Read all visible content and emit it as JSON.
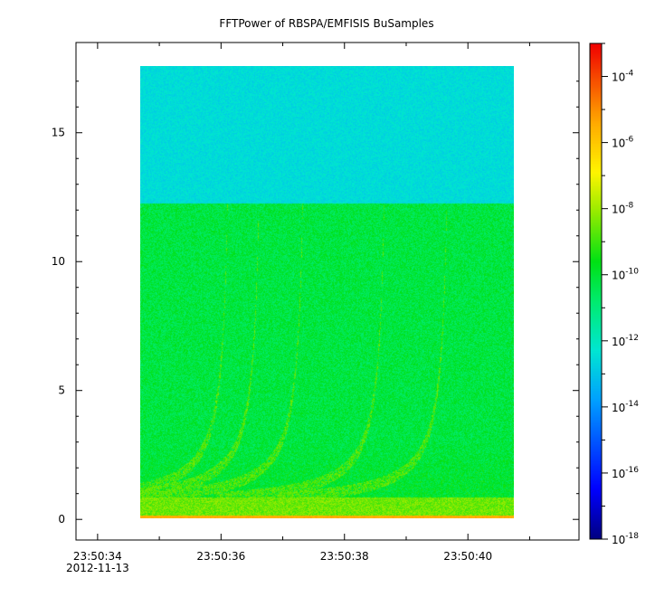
{
  "chart_data": {
    "type": "heatmap",
    "title": "FFTPower of RBSPA/EMFISIS  BuSamples",
    "xlabel": "",
    "ylabel": "",
    "x_range": [
      "2012-11-13 23:50:33.65",
      "2012-11-13 23:50:41.80"
    ],
    "ylim": [
      -0.8,
      18.5
    ],
    "x_ticks": [
      {
        "value": "23:50:34",
        "label": "23:50:34",
        "sublabel": "2012-11-13"
      },
      {
        "value": "23:50:36",
        "label": "23:50:36",
        "sublabel": ""
      },
      {
        "value": "23:50:38",
        "label": "23:50:38",
        "sublabel": ""
      },
      {
        "value": "23:50:40",
        "label": "23:50:40",
        "sublabel": ""
      }
    ],
    "x_minor_ticks": [
      "23:50:35",
      "23:50:37",
      "23:50:39",
      "23:50:41"
    ],
    "y_ticks": [
      0,
      5,
      10,
      15
    ],
    "y_tick_labels": [
      "0",
      "5",
      "10",
      "15"
    ],
    "data_extent": {
      "time_start": "23:50:35.00",
      "time_end": "23:50:40.95",
      "freq_min": 0,
      "freq_max": 17.5
    },
    "color_scale": {
      "type": "log10",
      "min": 1e-18,
      "max": 0.001,
      "colormap": "rainbow",
      "tick_exponents": [
        -18,
        -16,
        -14,
        -12,
        -10,
        -8,
        -6,
        -4
      ],
      "tick_base": "10"
    },
    "features": [
      {
        "name": "background-above-12",
        "freq_range": [
          12.2,
          17.5
        ],
        "log10_power": -12.5
      },
      {
        "name": "background-below-12",
        "freq_range": [
          0.3,
          12.2
        ],
        "log10_power": -10.2
      },
      {
        "name": "low-frequency-band",
        "freq_range": [
          0,
          0.8
        ],
        "log10_power": -8.5
      },
      {
        "name": "dc-line",
        "freq": 0.05,
        "log10_power": -5.5
      },
      {
        "name": "chorus-dispersion-arcs",
        "times": [
          "23:50:36.3",
          "23:50:36.8",
          "23:50:37.5",
          "23:50:38.8",
          "23:50:39.8"
        ],
        "log10_power": -8.7
      }
    ],
    "grid": false,
    "legend": "none"
  }
}
